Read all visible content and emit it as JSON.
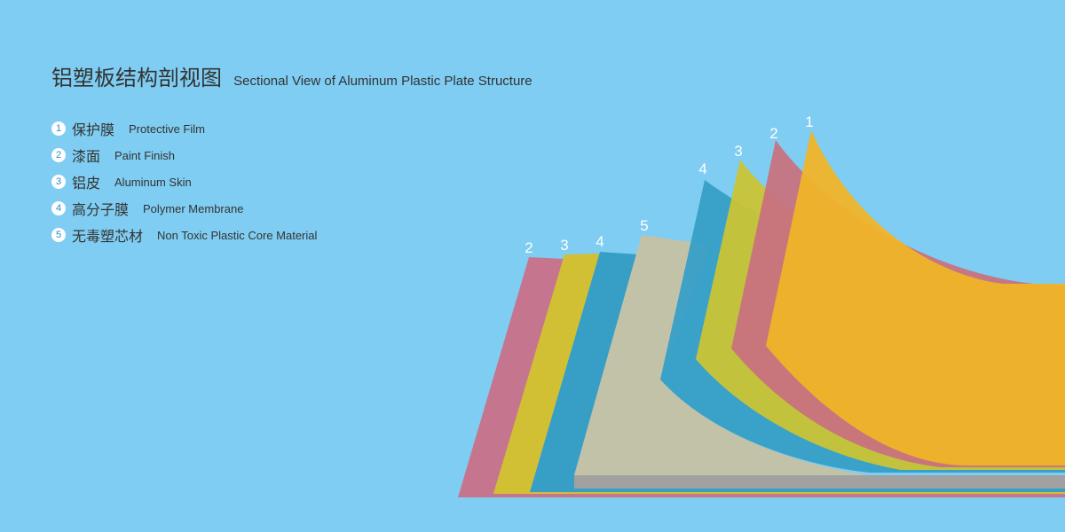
{
  "title": {
    "cn": "铝塑板结构剖视图",
    "en": "Sectional View of Aluminum Plastic Plate Structure"
  },
  "legend": [
    {
      "num": "1",
      "cn": "保护膜",
      "en": "Protective Film"
    },
    {
      "num": "2",
      "cn": "漆面",
      "en": "Paint Finish"
    },
    {
      "num": "3",
      "cn": "铝皮",
      "en": "Aluminum Skin"
    },
    {
      "num": "4",
      "cn": "高分子膜",
      "en": "Polymer Membrane"
    },
    {
      "num": "5",
      "cn": "无毒塑芯材",
      "en": "Non Toxic Plastic Core Material"
    }
  ],
  "diagram_labels": {
    "back": [
      "2",
      "3",
      "4"
    ],
    "core": "5",
    "front": [
      "4",
      "3",
      "2",
      "1"
    ]
  },
  "colors": {
    "background": "#7fcdf2",
    "protective_film": "#f0b428",
    "paint_finish": "#c5768e",
    "aluminum_skin": "#d1c034",
    "polymer_membrane": "#379fc6",
    "core": "#c2c2a9",
    "core_edge": "#a0a1a0"
  }
}
